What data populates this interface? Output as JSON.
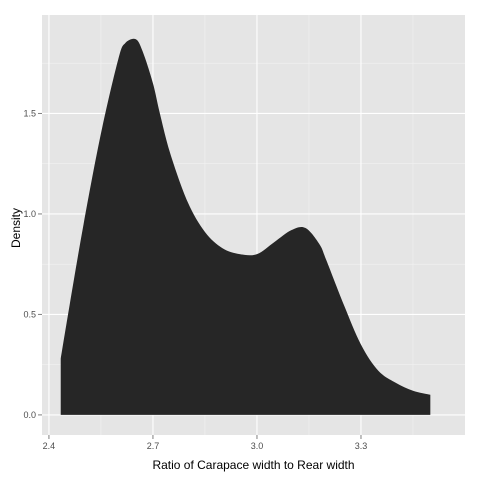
{
  "chart_data": {
    "type": "area",
    "xlabel": "Ratio of Carapace width to Rear width",
    "ylabel": "Density",
    "xlim": [
      2.38,
      3.6
    ],
    "ylim": [
      -0.1,
      1.99
    ],
    "x_ticks": [
      2.4,
      2.7,
      3.0,
      3.3
    ],
    "x_tick_labels": [
      "2.4",
      "2.7",
      "3.0",
      "3.3"
    ],
    "y_ticks": [
      0.0,
      0.5,
      1.0,
      1.5
    ],
    "y_tick_labels": [
      "0.0",
      "0.5",
      "1.0",
      "1.5"
    ],
    "grid": true,
    "colors": {
      "panel": "#e5e5e5",
      "grid_major": "#ffffff",
      "fill": "#262626"
    },
    "series": [
      {
        "x": [
          2.434,
          2.46,
          2.5,
          2.55,
          2.6,
          2.62,
          2.65,
          2.67,
          2.7,
          2.72,
          2.75,
          2.8,
          2.85,
          2.9,
          2.95,
          3.0,
          3.05,
          3.1,
          3.14,
          3.18,
          3.2,
          3.25,
          3.3,
          3.35,
          3.4,
          3.45,
          3.5
        ],
        "values": [
          0.28,
          0.55,
          0.95,
          1.4,
          1.77,
          1.85,
          1.87,
          1.81,
          1.65,
          1.5,
          1.3,
          1.06,
          0.91,
          0.83,
          0.8,
          0.8,
          0.86,
          0.92,
          0.93,
          0.85,
          0.77,
          0.55,
          0.35,
          0.22,
          0.16,
          0.12,
          0.1
        ]
      }
    ]
  }
}
